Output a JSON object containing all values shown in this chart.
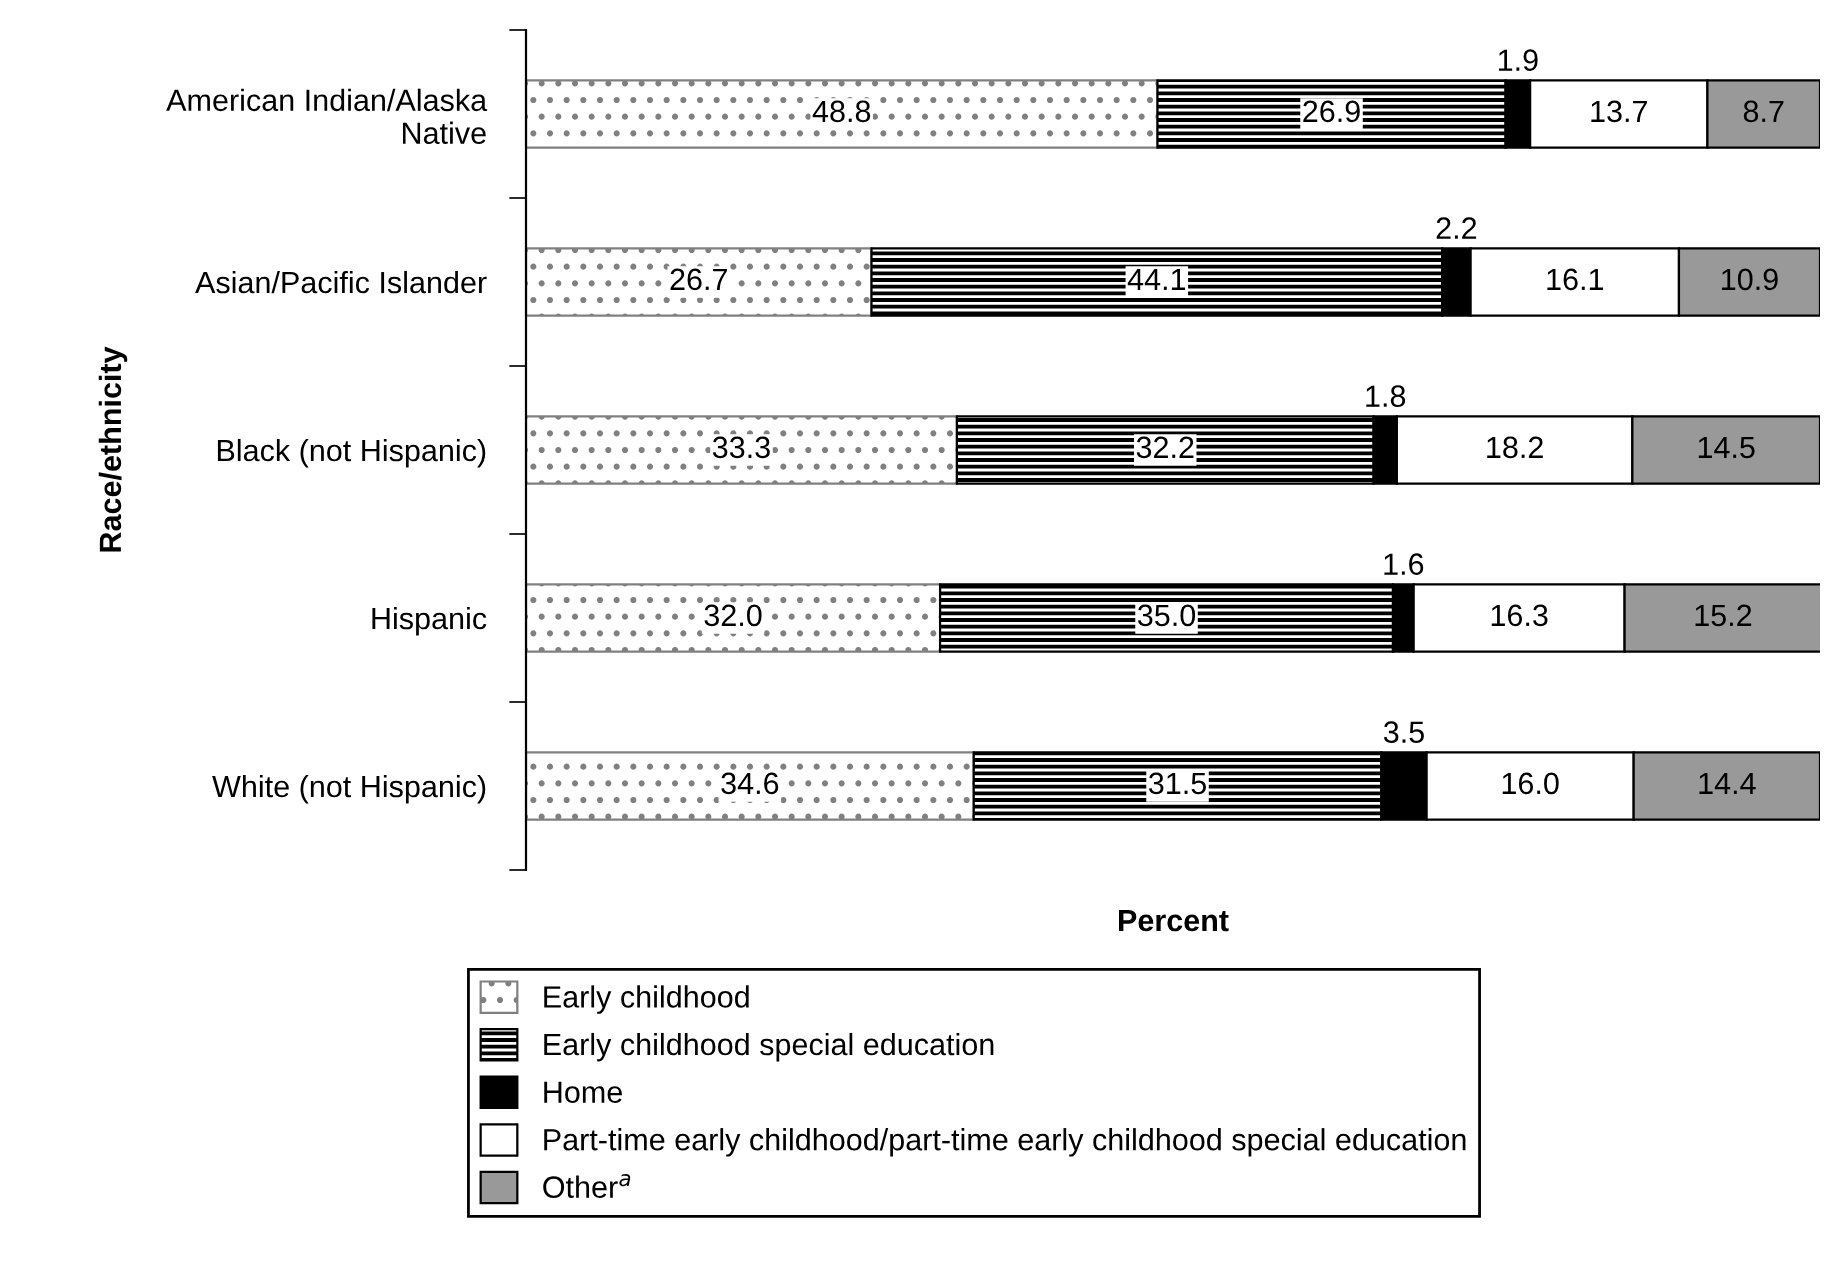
{
  "chart_data": {
    "type": "bar",
    "orientation": "horizontal",
    "stacked": true,
    "xlabel": "Percent",
    "ylabel": "Race/ethnicity",
    "categories": [
      "American Indian/Alaska\nNative",
      "Asian/Pacific Islander",
      "Black (not Hispanic)",
      "Hispanic",
      "White (not Hispanic)"
    ],
    "series": [
      {
        "name": "Early childhood",
        "color": "#808080",
        "values": [
          48.8,
          26.7,
          33.3,
          32.0,
          34.6
        ],
        "value_labels": [
          "48.8",
          "26.7",
          "33.3",
          "32.0",
          "34.6"
        ]
      },
      {
        "name": "Early childhood special education",
        "color": "#000000",
        "values": [
          26.9,
          44.1,
          32.2,
          35.0,
          31.5
        ],
        "value_labels": [
          "26.9",
          "44.1",
          "32.2",
          "35.0",
          "31.5"
        ]
      },
      {
        "name": "Home",
        "color": "#000000",
        "values": [
          1.9,
          2.2,
          1.8,
          1.6,
          3.5
        ],
        "value_labels": [
          "1.9",
          "2.2",
          "1.8",
          "1.6",
          "3.5"
        ]
      },
      {
        "name": "Part-time early childhood/part-time early childhood special education",
        "color": "#ffffff",
        "values": [
          13.7,
          16.1,
          18.2,
          16.3,
          16.0
        ],
        "value_labels": [
          "13.7",
          "16.1",
          "18.2",
          "16.3",
          "16.0"
        ]
      },
      {
        "name": "Other$^{a}$",
        "color": "#999999",
        "values": [
          8.7,
          10.9,
          14.5,
          15.2,
          14.4
        ],
        "value_labels": [
          "8.7",
          "10.9",
          "14.5",
          "15.2",
          "14.4"
        ]
      }
    ],
    "xlim": [
      0,
      100
    ],
    "tick_labels": "y",
    "legend": "bottom",
    "grid": false
  }
}
